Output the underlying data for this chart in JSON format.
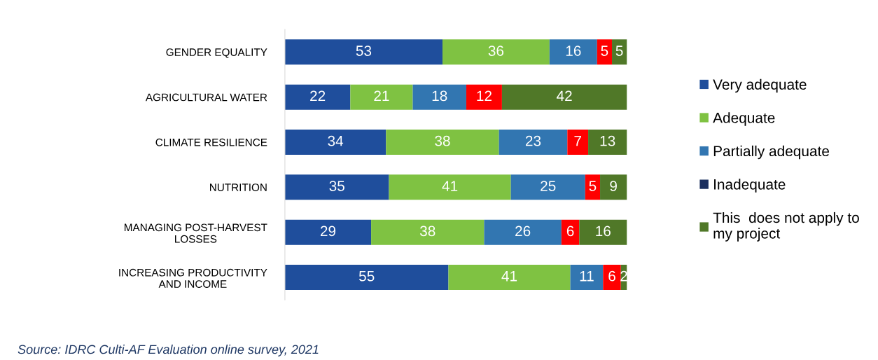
{
  "chart_data": {
    "type": "bar",
    "orientation": "horizontal",
    "stacked": true,
    "data_labels": true,
    "legend": "right",
    "grid": false,
    "tick_labels": "y",
    "categories": [
      "GENDER EQUALITY",
      "AGRICULTURAL WATER",
      "CLIMATE RESILIENCE",
      "NUTRITION",
      "MANAGING POST-HARVEST\nLOSSES",
      "INCREASING PRODUCTIVITY\nAND INCOME"
    ],
    "series": [
      {
        "name": "Very adequate",
        "color": "#1f4e9c",
        "values": [
          53,
          22,
          34,
          35,
          29,
          55
        ]
      },
      {
        "name": "Adequate",
        "color": "#7fc242",
        "values": [
          36,
          21,
          38,
          41,
          38,
          41
        ]
      },
      {
        "name": "Partially adequate",
        "color": "#3276b1",
        "values": [
          16,
          18,
          23,
          25,
          26,
          11
        ]
      },
      {
        "color": "#ff0000",
        "values": [
          5,
          12,
          7,
          5,
          6,
          6
        ]
      },
      {
        "name": "Inadequate",
        "color": "#1b2f5e",
        "values": [
          0,
          0,
          0,
          0,
          0,
          0
        ],
        "value_labels": [
          null,
          null,
          null,
          null,
          null,
          null
        ]
      },
      {
        "name": "This  does not apply to\nmy project",
        "color": "#507828",
        "values": [
          5,
          42,
          13,
          9,
          16,
          2
        ]
      }
    ],
    "annotations": [
      "Source: IDRC Culti-AF Evaluation online survey, 2021"
    ]
  }
}
